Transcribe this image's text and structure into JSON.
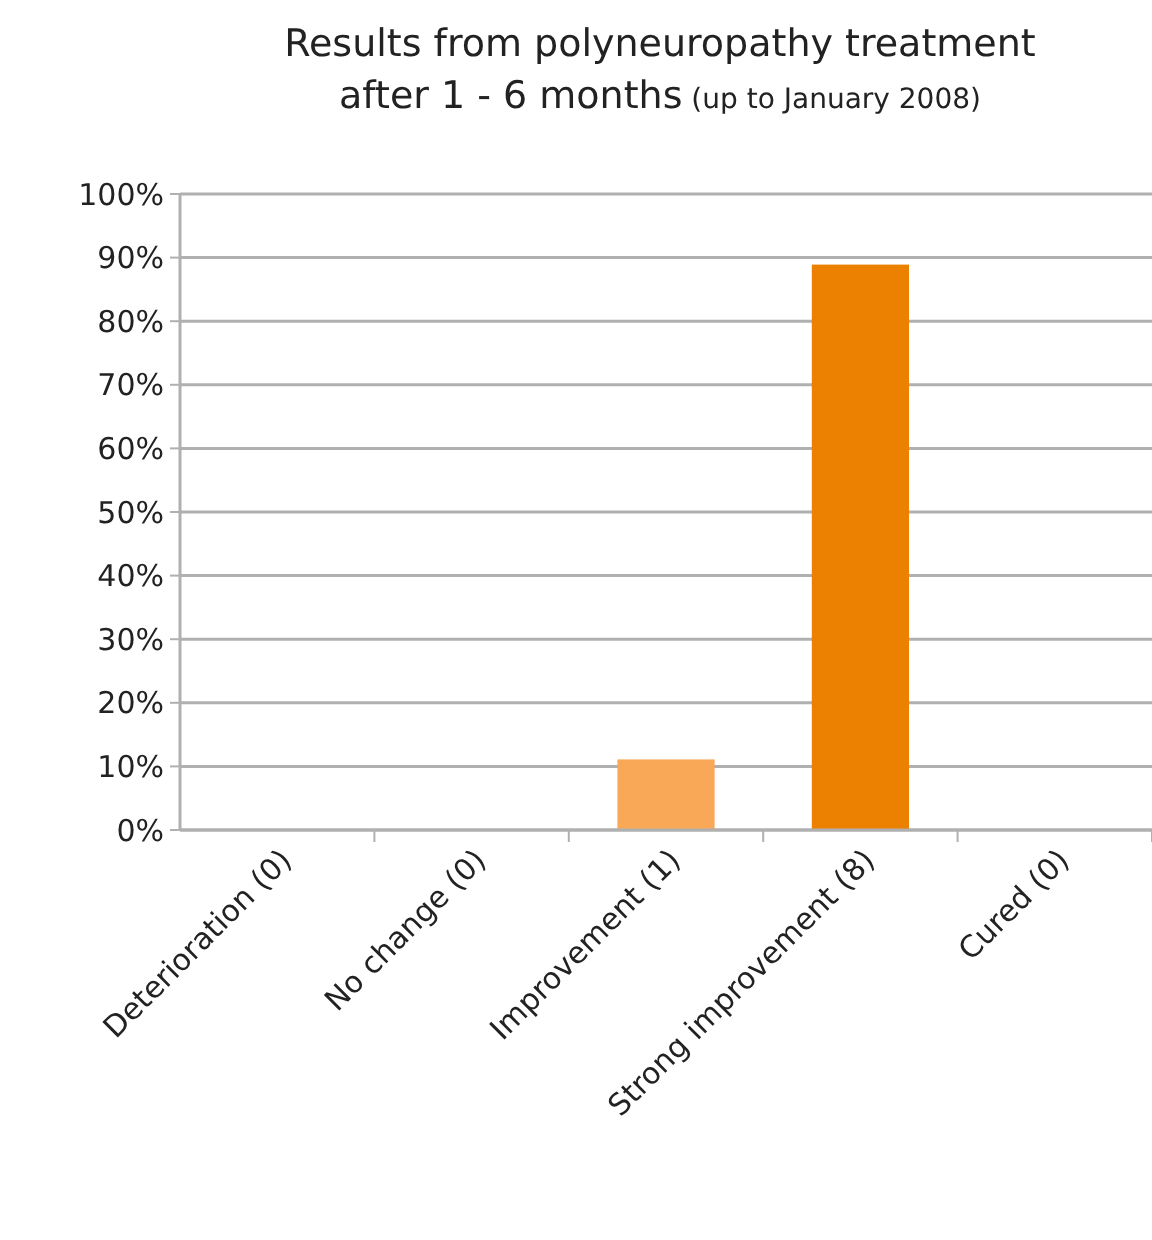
{
  "chart_data": {
    "type": "bar",
    "title": "Results from polyneuropathy treatment\nafter 1 - 6 months",
    "subtitle": "(up to January 2008)",
    "categories": [
      "Deterioration (0)",
      "No change (0)",
      "Improvement (1)",
      "Strong improvement (8)",
      "Cured (0)"
    ],
    "values": [
      0,
      0,
      11.1,
      88.9,
      0
    ],
    "colors": [
      "#f7a24f",
      "#f7a24f",
      "#f9a858",
      "#ec8000",
      "#ec8000"
    ],
    "ylim": [
      0,
      100
    ],
    "yticks": [
      {
        "value": 0,
        "label": "0%"
      },
      {
        "value": 10,
        "label": "10%"
      },
      {
        "value": 20,
        "label": "20%"
      },
      {
        "value": 30,
        "label": "30%"
      },
      {
        "value": 40,
        "label": "40%"
      },
      {
        "value": 50,
        "label": "50%"
      },
      {
        "value": 60,
        "label": "60%"
      },
      {
        "value": 70,
        "label": "70%"
      },
      {
        "value": 80,
        "label": "80%"
      },
      {
        "value": 90,
        "label": "90%"
      },
      {
        "value": 100,
        "label": "100%"
      }
    ],
    "grid": "y"
  }
}
